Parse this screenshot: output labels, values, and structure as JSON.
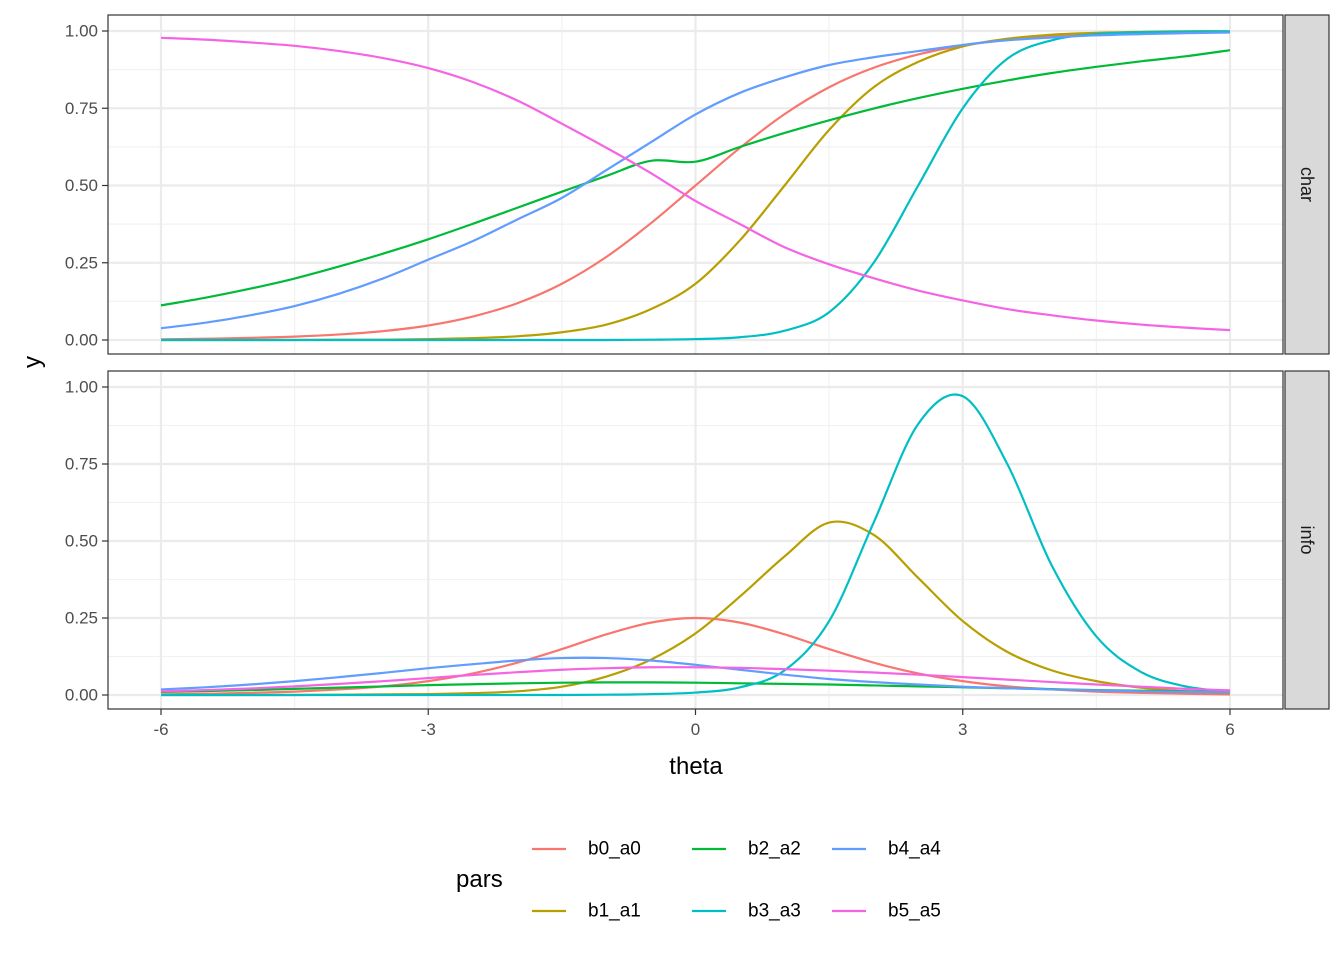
{
  "chart_data": {
    "type": "line",
    "facet_grid": "rows",
    "x": [
      -6,
      -5.5,
      -5,
      -4.5,
      -4,
      -3.5,
      -3,
      -2.5,
      -2,
      -1.5,
      -1,
      -0.5,
      0,
      0.5,
      1,
      1.5,
      2,
      2.5,
      3,
      3.5,
      4,
      4.5,
      5,
      5.5,
      6
    ],
    "xlabel": "theta",
    "ylabel": "y",
    "xlim": [
      -6,
      6
    ],
    "ylim": [
      0,
      1
    ],
    "x_ticks": [
      -6,
      -3,
      0,
      3,
      6
    ],
    "x_tick_labels": [
      "-6",
      "-3",
      "0",
      "3",
      "6"
    ],
    "y_ticks": [
      0,
      0.25,
      0.5,
      0.75,
      1
    ],
    "y_tick_labels": [
      "0.00",
      "0.25",
      "0.50",
      "0.75",
      "1.00"
    ],
    "grid": true,
    "legend": {
      "title": "pars",
      "position": "bottom",
      "entries": [
        "b0_a0",
        "b2_a2",
        "b4_a4",
        "b1_a1",
        "b3_a3",
        "b5_a5"
      ]
    },
    "series_colors": {
      "b0_a0": "#F8766D",
      "b1_a1": "#B79F00",
      "b2_a2": "#00BA38",
      "b3_a3": "#00BFC4",
      "b4_a4": "#619CFF",
      "b5_a5": "#F564E3"
    },
    "panels": [
      {
        "label": "char",
        "series": [
          {
            "name": "b0_a0",
            "values": [
              0.002,
              0.004,
              0.007,
              0.011,
              0.018,
              0.029,
              0.047,
              0.076,
              0.119,
              0.182,
              0.269,
              0.378,
              0.5,
              0.622,
              0.731,
              0.818,
              0.881,
              0.924,
              0.953,
              0.971,
              0.982,
              0.989,
              0.993,
              0.996,
              0.998
            ]
          },
          {
            "name": "b1_a1",
            "values": [
              0.0,
              0.0,
              0.0,
              0.0,
              0.001,
              0.001,
              0.003,
              0.006,
              0.012,
              0.025,
              0.05,
              0.1,
              0.182,
              0.323,
              0.5,
              0.68,
              0.818,
              0.9,
              0.95,
              0.975,
              0.988,
              0.994,
              0.997,
              0.999,
              0.999
            ]
          },
          {
            "name": "b2_a2",
            "values": [
              0.112,
              0.137,
              0.166,
              0.199,
              0.238,
              0.28,
              0.326,
              0.376,
              0.428,
              0.48,
              0.531,
              0.58,
              0.577,
              0.625,
              0.67,
              0.711,
              0.749,
              0.783,
              0.813,
              0.84,
              0.864,
              0.884,
              0.902,
              0.918,
              0.938
            ]
          },
          {
            "name": "b3_a3",
            "values": [
              0.0,
              0.0,
              0.0,
              0.0,
              0.0,
              0.0,
              0.0,
              0.0,
              0.0,
              0.0,
              0.0,
              0.001,
              0.003,
              0.009,
              0.03,
              0.09,
              0.25,
              0.5,
              0.75,
              0.91,
              0.97,
              0.99,
              0.996,
              0.998,
              0.999
            ]
          },
          {
            "name": "b4_a4",
            "values": [
              0.038,
              0.056,
              0.08,
              0.11,
              0.15,
              0.2,
              0.26,
              0.32,
              0.39,
              0.46,
              0.55,
              0.64,
              0.73,
              0.8,
              0.85,
              0.89,
              0.915,
              0.935,
              0.955,
              0.97,
              0.979,
              0.986,
              0.99,
              0.993,
              0.995
            ]
          },
          {
            "name": "b5_a5",
            "values": [
              0.978,
              0.972,
              0.963,
              0.952,
              0.935,
              0.912,
              0.88,
              0.835,
              0.775,
              0.7,
              0.622,
              0.54,
              0.45,
              0.375,
              0.3,
              0.245,
              0.2,
              0.16,
              0.128,
              0.1,
              0.08,
              0.063,
              0.05,
              0.04,
              0.032
            ]
          }
        ]
      },
      {
        "label": "info",
        "series": [
          {
            "name": "b0_a0",
            "values": [
              0.002,
              0.004,
              0.007,
              0.011,
              0.018,
              0.028,
              0.045,
              0.07,
              0.105,
              0.149,
              0.197,
              0.235,
              0.25,
              0.235,
              0.197,
              0.149,
              0.105,
              0.07,
              0.045,
              0.028,
              0.018,
              0.011,
              0.007,
              0.004,
              0.002
            ]
          },
          {
            "name": "b1_a1",
            "values": [
              0.0,
              0.0,
              0.0,
              0.0,
              0.001,
              0.002,
              0.003,
              0.006,
              0.012,
              0.027,
              0.06,
              0.115,
              0.2,
              0.32,
              0.45,
              0.56,
              0.52,
              0.38,
              0.24,
              0.14,
              0.08,
              0.045,
              0.024,
              0.012,
              0.006
            ]
          },
          {
            "name": "b2_a2",
            "values": [
              0.01,
              0.013,
              0.016,
              0.02,
              0.024,
              0.028,
              0.032,
              0.035,
              0.038,
              0.04,
              0.041,
              0.041,
              0.04,
              0.038,
              0.036,
              0.034,
              0.031,
              0.028,
              0.025,
              0.022,
              0.019,
              0.016,
              0.014,
              0.012,
              0.01
            ]
          },
          {
            "name": "b3_a3",
            "values": [
              0.0,
              0.0,
              0.0,
              0.0,
              0.0,
              0.0,
              0.0,
              0.0,
              0.0,
              0.0,
              0.001,
              0.003,
              0.008,
              0.025,
              0.08,
              0.24,
              0.56,
              0.88,
              0.97,
              0.75,
              0.42,
              0.19,
              0.075,
              0.028,
              0.01
            ]
          },
          {
            "name": "b4_a4",
            "values": [
              0.018,
              0.025,
              0.034,
              0.045,
              0.058,
              0.072,
              0.087,
              0.1,
              0.112,
              0.12,
              0.12,
              0.112,
              0.098,
              0.082,
              0.066,
              0.052,
              0.042,
              0.034,
              0.027,
              0.022,
              0.018,
              0.015,
              0.012,
              0.01,
              0.009
            ]
          },
          {
            "name": "b5_a5",
            "values": [
              0.012,
              0.016,
              0.021,
              0.028,
              0.036,
              0.045,
              0.055,
              0.065,
              0.074,
              0.082,
              0.087,
              0.09,
              0.09,
              0.088,
              0.084,
              0.079,
              0.073,
              0.066,
              0.058,
              0.05,
              0.042,
              0.034,
              0.027,
              0.02,
              0.015
            ]
          }
        ]
      }
    ]
  }
}
